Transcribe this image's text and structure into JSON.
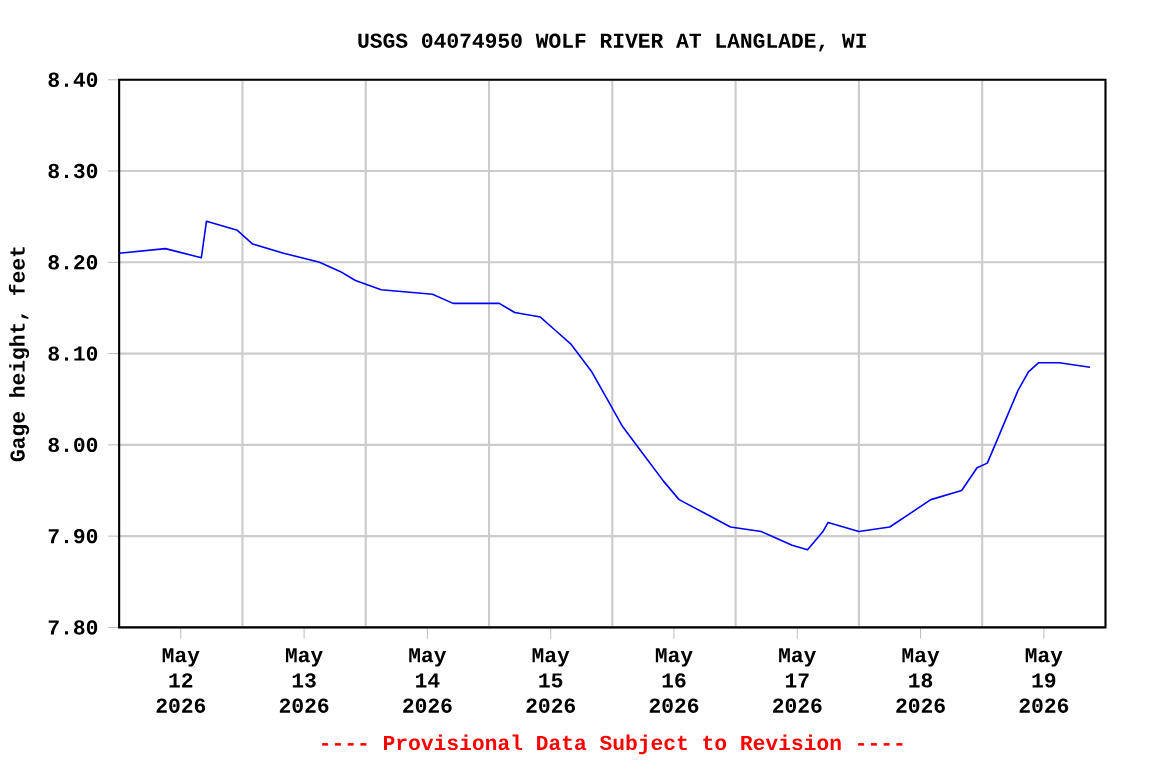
{
  "chart_data": {
    "type": "line",
    "title": "USGS 04074950 WOLF RIVER AT LANGLADE, WI",
    "ylabel": "Gage height, feet",
    "annotations": [
      "---- Provisional Data Subject to Revision ----"
    ],
    "x": [
      "2026-05-12T00:00",
      "2026-05-12T09:00",
      "2026-05-12T16:00",
      "2026-05-12T17:00",
      "2026-05-12T23:00",
      "2026-05-13T02:00",
      "2026-05-13T08:00",
      "2026-05-13T15:00",
      "2026-05-13T19:00",
      "2026-05-13T22:00",
      "2026-05-14T03:00",
      "2026-05-14T13:00",
      "2026-05-14T17:00",
      "2026-05-15T02:00",
      "2026-05-15T05:00",
      "2026-05-15T10:00",
      "2026-05-15T13:00",
      "2026-05-15T16:00",
      "2026-05-15T20:00",
      "2026-05-15T23:00",
      "2026-05-16T02:00",
      "2026-05-16T06:00",
      "2026-05-16T10:00",
      "2026-05-16T13:00",
      "2026-05-16T18:00",
      "2026-05-16T23:00",
      "2026-05-17T05:00",
      "2026-05-17T11:00",
      "2026-05-17T14:00",
      "2026-05-17T17:00",
      "2026-05-17T18:00",
      "2026-05-18T00:00",
      "2026-05-18T06:00",
      "2026-05-18T10:00",
      "2026-05-18T14:00",
      "2026-05-18T20:00",
      "2026-05-18T23:00",
      "2026-05-19T01:00",
      "2026-05-19T04:00",
      "2026-05-19T07:00",
      "2026-05-19T09:00",
      "2026-05-19T11:00",
      "2026-05-19T15:00",
      "2026-05-19T21:00"
    ],
    "series": [
      {
        "color": "#0000ff",
        "values": [
          8.21,
          8.215,
          8.205,
          8.245,
          8.235,
          8.22,
          8.21,
          8.2,
          8.19,
          8.18,
          8.17,
          8.165,
          8.155,
          8.155,
          8.145,
          8.14,
          8.125,
          8.11,
          8.08,
          8.05,
          8.02,
          7.99,
          7.96,
          7.94,
          7.925,
          7.91,
          7.905,
          7.89,
          7.885,
          7.905,
          7.915,
          7.905,
          7.91,
          7.925,
          7.94,
          7.95,
          7.975,
          7.98,
          8.02,
          8.06,
          8.08,
          8.09,
          8.09,
          8.085
        ]
      }
    ],
    "xlim": [
      "2026-05-12T00:00",
      "2026-05-20T00:00"
    ],
    "xticks": [
      {
        "value": "2026-05-12T12:00",
        "label": "May 12 2026"
      },
      {
        "value": "2026-05-13T00:00",
        "label": null
      },
      {
        "value": "2026-05-13T12:00",
        "label": "May 13 2026"
      },
      {
        "value": "2026-05-14T00:00",
        "label": null
      },
      {
        "value": "2026-05-14T12:00",
        "label": "May 14 2026"
      },
      {
        "value": "2026-05-15T00:00",
        "label": null
      },
      {
        "value": "2026-05-15T12:00",
        "label": "May 15 2026"
      },
      {
        "value": "2026-05-16T00:00",
        "label": null
      },
      {
        "value": "2026-05-16T12:00",
        "label": "May 16 2026"
      },
      {
        "value": "2026-05-17T00:00",
        "label": null
      },
      {
        "value": "2026-05-17T12:00",
        "label": "May 17 2026"
      },
      {
        "value": "2026-05-18T00:00",
        "label": null
      },
      {
        "value": "2026-05-18T12:00",
        "label": "May 18 2026"
      },
      {
        "value": "2026-05-19T00:00",
        "label": null
      },
      {
        "value": "2026-05-19T12:00",
        "label": "May 19 2026"
      }
    ],
    "ylim": [
      7.8,
      8.4
    ],
    "yticks": [
      {
        "value": 7.8,
        "label": "7.80"
      },
      {
        "value": 7.9,
        "label": "7.90"
      },
      {
        "value": 8.0,
        "label": "8.00"
      },
      {
        "value": 8.1,
        "label": "8.10"
      },
      {
        "value": 8.2,
        "label": "8.20"
      },
      {
        "value": 8.3,
        "label": "8.30"
      },
      {
        "value": 8.4,
        "label": "8.40"
      }
    ],
    "grid": true,
    "marker": "none",
    "line_style": "solid"
  }
}
